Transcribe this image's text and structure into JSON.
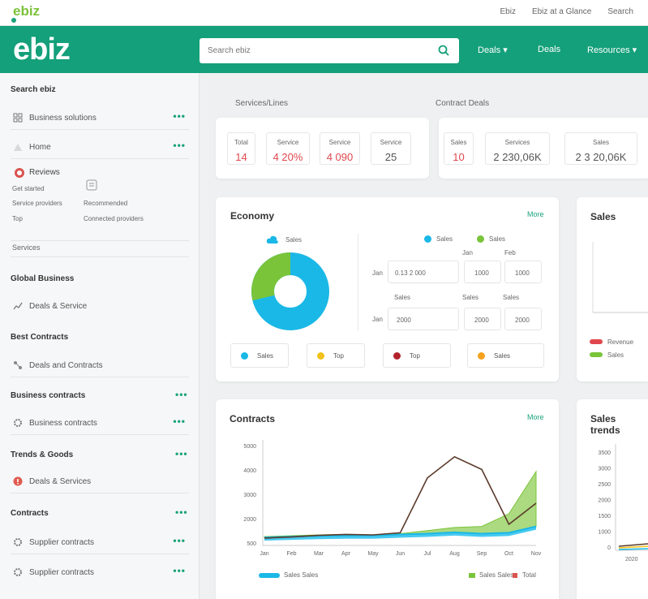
{
  "top": {
    "logo": "ebiz",
    "link1": "Ebiz",
    "link2": "Ebiz at a Glance",
    "link3": "Search"
  },
  "header": {
    "logo": "ebiz",
    "search_placeholder": "Search ebiz",
    "nav1": "Deals",
    "nav2": "Deals",
    "nav3": "Resources"
  },
  "sidebar": {
    "section1": "Search ebiz",
    "row1": "Business solutions",
    "row2": "Home",
    "row3": "Reviews",
    "sub1": "Get started",
    "sub2": "Service providers",
    "sub3": "Recommended",
    "sub4": "Top",
    "sub5": "Connected providers",
    "sub6": "Recommended",
    "plain": "Services",
    "section2": "Global Business",
    "row4": "Deals & Service",
    "section3": "Best Contracts",
    "row5": "Deals and Contracts",
    "section4": "Business contracts",
    "row6": "Business contracts",
    "section5": "Trends & Goods",
    "row7": "Deals & Services",
    "section6": "Contracts",
    "row8": "Supplier contracts",
    "row9": "Supplier contracts"
  },
  "stats": {
    "left_title": "Services/Lines",
    "right_title": "Contract Deals",
    "s1t": "Total",
    "s1v": "14",
    "s2t": "Service",
    "s2v": "4 20%",
    "s3t": "Service",
    "s3v": "4 090",
    "s4t": "Service",
    "s4v": "25",
    "s5t": "Sales",
    "s5v": "10",
    "s6t": "Services",
    "s6v": "2 230,06K",
    "s7t": "Sales",
    "s7v": "2 3 20,06K"
  },
  "economy": {
    "title": "Economy",
    "link": "More",
    "donut_label": "Sales",
    "leg1": "Sales",
    "leg2": "Sales",
    "col1": "Jan",
    "col2": "Feb",
    "r1lbl": "Jan",
    "r1v1": "0.13 2 000",
    "r1v2": "1000",
    "r1v3": "1000",
    "r2h1": "Sales",
    "r2h2": "Sales",
    "r2h3": "Sales",
    "r2lbl": "Jan",
    "r2v1": "2000",
    "r2v2": "2000",
    "r2v3": "2000",
    "b1": "Sales",
    "b2": "Top",
    "b3": "Top",
    "b4": "Sales",
    "colors": {
      "cyan": "#1ab8e6",
      "green": "#7ac43a",
      "yellow": "#f2c21a",
      "red": "#b3222c",
      "orange": "#f5a21e"
    }
  },
  "sales_side": {
    "title": "Sales",
    "leg1": "Revenue",
    "leg2": "Sales"
  },
  "contracts": {
    "title": "Contracts",
    "link": "More",
    "yticks": [
      "5000",
      "4000",
      "3000",
      "2000",
      "500"
    ],
    "xticks": [
      "Jan",
      "Feb",
      "Mar",
      "Apr",
      "May",
      "Jun",
      "Jul",
      "Aug",
      "Sep",
      "Oct",
      "Nov"
    ],
    "leg1": "Sales Sales",
    "leg2": "Sales Sales",
    "leg3": "Total"
  },
  "side2": {
    "title": "Sales trends",
    "yticks": [
      "3500",
      "3000",
      "2500",
      "2000",
      "1500",
      "1000",
      "0"
    ],
    "xtick": "2020"
  },
  "chart_data": {
    "type": "area",
    "categories": [
      "Jan",
      "Feb",
      "Mar",
      "Apr",
      "May",
      "Jun",
      "Jul",
      "Aug",
      "Sep",
      "Oct",
      "Nov"
    ],
    "series": [
      {
        "name": "Sales",
        "values": [
          420,
          460,
          500,
          520,
          480,
          560,
          700,
          850,
          900,
          1500,
          3500
        ],
        "color": "#7ac43a"
      },
      {
        "name": "Sales",
        "values": [
          380,
          420,
          450,
          470,
          470,
          520,
          560,
          620,
          560,
          600,
          900
        ],
        "color": "#1ab8e6"
      },
      {
        "name": "Total",
        "values": [
          350,
          400,
          480,
          520,
          500,
          600,
          3200,
          4200,
          3600,
          1000,
          2000
        ],
        "color": "#5b3a2a"
      }
    ],
    "ylim": [
      0,
      5000
    ]
  }
}
